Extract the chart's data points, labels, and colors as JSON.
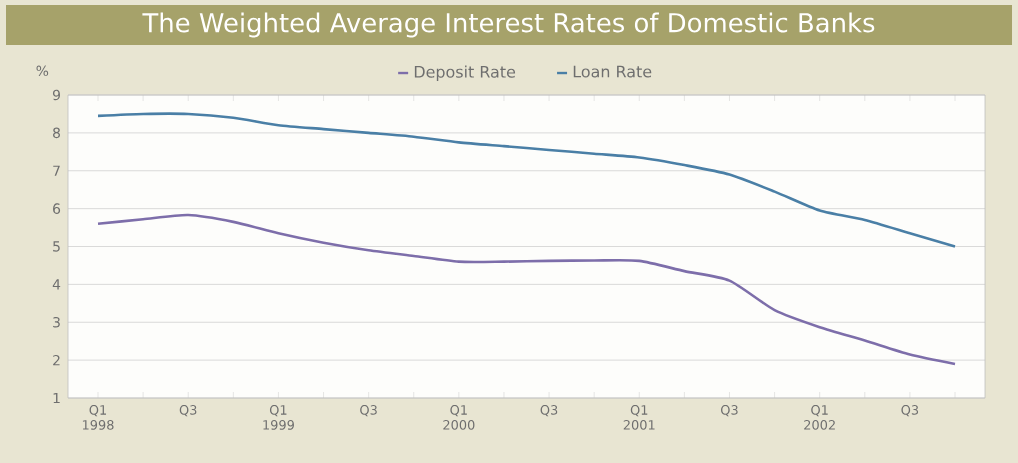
{
  "chart_data": {
    "type": "line",
    "title": "The Weighted Average Interest Rates of Domestic Banks",
    "ylabel": "%",
    "categories": [
      "Q1 1998",
      null,
      "Q3",
      null,
      "Q1 1999",
      null,
      "Q3",
      null,
      "Q1 2000",
      null,
      "Q3",
      null,
      "Q1 2001",
      null,
      "Q3",
      null,
      "Q1 2002",
      null,
      "Q3",
      null
    ],
    "series": [
      {
        "name": "Deposit Rate",
        "color": "#7d6eaa",
        "values": [
          5.6,
          5.72,
          5.83,
          5.65,
          5.35,
          5.1,
          4.9,
          4.75,
          4.6,
          4.6,
          4.62,
          4.63,
          4.62,
          4.35,
          4.1,
          3.32,
          2.87,
          2.52,
          2.15,
          1.9
        ]
      },
      {
        "name": "Loan Rate",
        "color": "#4a7fa6",
        "values": [
          8.45,
          8.5,
          8.5,
          8.4,
          8.2,
          8.1,
          8.0,
          7.9,
          7.75,
          7.65,
          7.55,
          7.45,
          7.35,
          7.15,
          6.9,
          6.45,
          5.95,
          5.7,
          5.35,
          5.0
        ]
      }
    ],
    "ylim": [
      1,
      9
    ],
    "yticks": [
      1,
      2,
      3,
      4,
      5,
      6,
      7,
      8,
      9
    ],
    "grid": "y",
    "legend": "top",
    "line_style": "solid"
  }
}
